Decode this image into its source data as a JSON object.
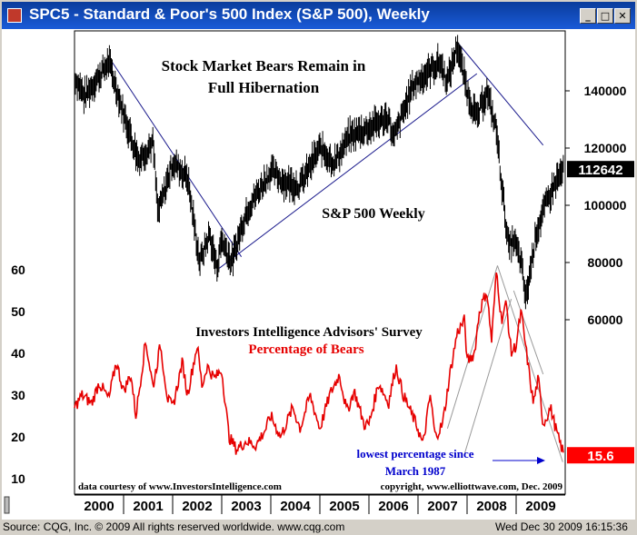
{
  "window": {
    "title": "SPC5 - Standard & Poor's 500 Index (S&P 500), Weekly",
    "minimize_glyph": "_",
    "maximize_glyph": "□",
    "close_glyph": "✕"
  },
  "status": {
    "source": "Source: CQG, Inc. © 2009 All rights reserved worldwide. www.cqg.com",
    "datetime": "Wed Dec 30 2009 16:15:36"
  },
  "chart_data": {
    "type": "line",
    "title": "Stock Market Bears Remain in Full Hibernation",
    "title_lines": [
      "Stock Market Bears Remain in",
      "Full Hibernation"
    ],
    "x_ticks": [
      "2000",
      "2001",
      "2002",
      "2003",
      "2004",
      "2005",
      "2006",
      "2007",
      "2008",
      "2009"
    ],
    "colors": {
      "sp500": "#000000",
      "bears": "#e60000",
      "trendline": "#1a1a8c",
      "wedge": "#999999",
      "annotation": "#0000cc",
      "last_value_box": "#000000",
      "bears_value_box": "#ff0000"
    },
    "sp500": {
      "label": "S&P 500 Weekly",
      "y_ticks": [
        "140000",
        "120000",
        "100000",
        "80000",
        "60000"
      ],
      "y_tick_values": [
        140000,
        120000,
        100000,
        80000,
        60000
      ],
      "last_value_label": "112642",
      "last_value": 112642,
      "key_points": [
        [
          2000.0,
          145000
        ],
        [
          2000.2,
          138000
        ],
        [
          2000.7,
          150000
        ],
        [
          2001.0,
          132000
        ],
        [
          2001.3,
          116000
        ],
        [
          2001.6,
          122000
        ],
        [
          2001.7,
          97000
        ],
        [
          2002.0,
          115000
        ],
        [
          2002.3,
          110000
        ],
        [
          2002.55,
          80000
        ],
        [
          2002.75,
          90000
        ],
        [
          2002.9,
          78000
        ],
        [
          2003.0,
          88000
        ],
        [
          2003.2,
          80000
        ],
        [
          2003.5,
          98000
        ],
        [
          2004.0,
          112000
        ],
        [
          2004.3,
          108000
        ],
        [
          2004.6,
          107000
        ],
        [
          2005.0,
          120000
        ],
        [
          2005.3,
          115000
        ],
        [
          2005.6,
          124000
        ],
        [
          2006.0,
          127000
        ],
        [
          2006.4,
          131000
        ],
        [
          2006.5,
          123000
        ],
        [
          2006.9,
          142000
        ],
        [
          2007.3,
          148000
        ],
        [
          2007.45,
          150000
        ],
        [
          2007.6,
          143000
        ],
        [
          2007.8,
          156000
        ],
        [
          2008.0,
          140000
        ],
        [
          2008.2,
          130000
        ],
        [
          2008.4,
          140000
        ],
        [
          2008.6,
          126000
        ],
        [
          2008.75,
          100000
        ],
        [
          2008.85,
          85000
        ],
        [
          2008.95,
          88000
        ],
        [
          2009.1,
          80000
        ],
        [
          2009.2,
          67000
        ],
        [
          2009.4,
          90000
        ],
        [
          2009.6,
          100000
        ],
        [
          2009.8,
          108000
        ],
        [
          2009.98,
          112642
        ]
      ]
    },
    "bears": {
      "label": "Percentage of Bears",
      "y_ticks": [
        "60",
        "50",
        "40",
        "30",
        "20",
        "10"
      ],
      "y_tick_values": [
        60,
        50,
        40,
        30,
        20,
        10
      ],
      "last_value_label": "15.6",
      "last_value": 15.6,
      "key_points": [
        [
          2000.0,
          27
        ],
        [
          2000.15,
          30
        ],
        [
          2000.35,
          28
        ],
        [
          2000.5,
          33
        ],
        [
          2000.7,
          29
        ],
        [
          2000.85,
          38
        ],
        [
          2001.0,
          31
        ],
        [
          2001.15,
          35
        ],
        [
          2001.25,
          25
        ],
        [
          2001.45,
          43
        ],
        [
          2001.6,
          32
        ],
        [
          2001.75,
          42
        ],
        [
          2001.9,
          29
        ],
        [
          2002.0,
          27
        ],
        [
          2002.2,
          38
        ],
        [
          2002.3,
          30
        ],
        [
          2002.5,
          42
        ],
        [
          2002.6,
          32
        ],
        [
          2002.7,
          37
        ],
        [
          2002.85,
          34
        ],
        [
          2003.0,
          36
        ],
        [
          2003.15,
          20
        ],
        [
          2003.3,
          17
        ],
        [
          2003.5,
          19
        ],
        [
          2003.7,
          18
        ],
        [
          2003.9,
          22
        ],
        [
          2004.0,
          25
        ],
        [
          2004.2,
          20
        ],
        [
          2004.45,
          27
        ],
        [
          2004.6,
          22
        ],
        [
          2004.8,
          30
        ],
        [
          2005.0,
          22
        ],
        [
          2005.2,
          30
        ],
        [
          2005.4,
          35
        ],
        [
          2005.55,
          26
        ],
        [
          2005.7,
          31
        ],
        [
          2005.9,
          23
        ],
        [
          2006.0,
          23
        ],
        [
          2006.2,
          33
        ],
        [
          2006.4,
          28
        ],
        [
          2006.55,
          37
        ],
        [
          2006.7,
          30
        ],
        [
          2006.85,
          26
        ],
        [
          2007.0,
          22
        ],
        [
          2007.1,
          18
        ],
        [
          2007.25,
          30
        ],
        [
          2007.35,
          20
        ],
        [
          2007.5,
          23
        ],
        [
          2007.65,
          35
        ],
        [
          2007.8,
          45
        ],
        [
          2007.95,
          48
        ],
        [
          2008.0,
          38
        ],
        [
          2008.15,
          40
        ],
        [
          2008.25,
          50
        ],
        [
          2008.4,
          55
        ],
        [
          2008.5,
          43
        ],
        [
          2008.6,
          60
        ],
        [
          2008.7,
          48
        ],
        [
          2008.8,
          52
        ],
        [
          2008.9,
          40
        ],
        [
          2009.0,
          42
        ],
        [
          2009.1,
          50
        ],
        [
          2009.2,
          41
        ],
        [
          2009.35,
          28
        ],
        [
          2009.45,
          34
        ],
        [
          2009.55,
          23
        ],
        [
          2009.7,
          27
        ],
        [
          2009.85,
          20
        ],
        [
          2009.98,
          15.6
        ]
      ]
    },
    "annotations": {
      "survey_title": "Investors Intelligence Advisors' Survey",
      "lowest_line1": "lowest percentage since",
      "lowest_line2": "March 1987",
      "courtesy": "data courtesy of www.InvestorsIntelligence.com",
      "copyright": "copyright, www.elliottwave.com, Dec. 2009"
    }
  }
}
